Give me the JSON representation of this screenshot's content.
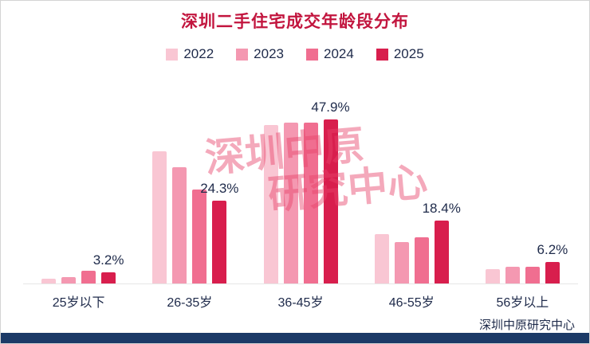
{
  "title": "深圳二手住宅成交年龄段分布",
  "caption": "深圳中原研究中心",
  "watermark": {
    "line1": "深圳中原",
    "line2": "研究中心"
  },
  "colors": {
    "title": "#c2153e",
    "text": "#1e2a4a",
    "watermark": "#e8436a",
    "footer": "#1c3a67",
    "baseline": "#e7e7e7",
    "series_2022": "#f9c6d3",
    "series_2023": "#f498b1",
    "series_2024": "#f06e90",
    "series_2025": "#d81e4d"
  },
  "chart_data": {
    "type": "bar",
    "title": "深圳二手住宅成交年龄段分布",
    "categories": [
      "25岁以下",
      "26-35岁",
      "36-45岁",
      "46-55岁",
      "56岁以上"
    ],
    "series": [
      {
        "name": "2022",
        "color": "#f9c6d3",
        "values": [
          1.5,
          38.5,
          46.3,
          14.5,
          4.2
        ]
      },
      {
        "name": "2023",
        "color": "#f498b1",
        "values": [
          1.8,
          34.0,
          47.0,
          12.0,
          5.0
        ]
      },
      {
        "name": "2024",
        "color": "#f06e90",
        "values": [
          3.8,
          27.5,
          47.0,
          13.5,
          4.8
        ]
      },
      {
        "name": "2025",
        "color": "#d81e4d",
        "values": [
          3.2,
          24.3,
          47.9,
          18.4,
          6.2
        ]
      }
    ],
    "labeled_series": "2025",
    "labels": [
      "3.2%",
      "24.3%",
      "47.9%",
      "18.4%",
      "6.2%"
    ],
    "ylim": [
      0,
      50
    ],
    "unit": "%",
    "grid": false,
    "legend_position": "top"
  }
}
